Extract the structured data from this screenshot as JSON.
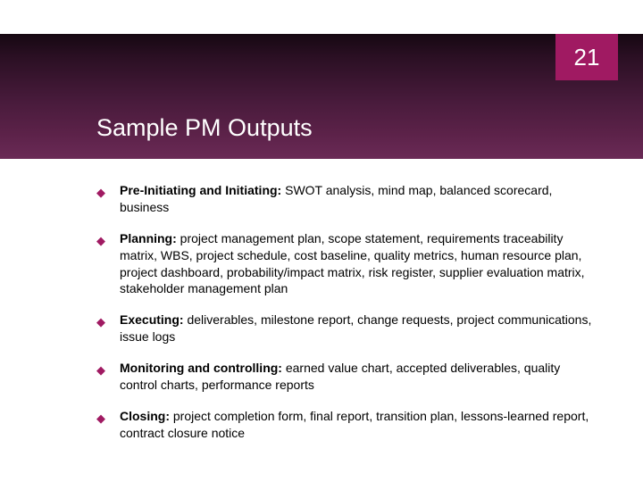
{
  "slide": {
    "page_number": "21",
    "title": "Sample PM Outputs",
    "header_gradient_colors": [
      "#160812",
      "#2a0f23",
      "#491b3c",
      "#5c2249",
      "#6a2a56"
    ],
    "accent_color": "#a01a62",
    "background_color": "#ffffff",
    "title_color": "#ffffff",
    "text_color": "#000000",
    "title_fontsize": 27,
    "body_fontsize": 14,
    "pagenum_fontsize": 26,
    "bullet_marker": "◆"
  },
  "bullets": [
    {
      "label": "Pre-Initiating and Initiating:",
      "text": " SWOT analysis, mind map, balanced scorecard, business"
    },
    {
      "label": "Planning:",
      "text": " project management plan, scope statement, requirements traceability matrix, WBS, project schedule, cost baseline, quality metrics, human resource plan, project dashboard, probability/impact matrix, risk register, supplier evaluation matrix, stakeholder management plan"
    },
    {
      "label": "Executing:",
      "text": " deliverables, milestone report, change requests, project communications, issue logs"
    },
    {
      "label": "Monitoring and controlling:",
      "text": " earned value chart, accepted deliverables, quality control charts, performance reports"
    },
    {
      "label": "Closing:",
      "text": " project completion form, final report, transition plan, lessons-learned report, contract closure notice"
    }
  ]
}
